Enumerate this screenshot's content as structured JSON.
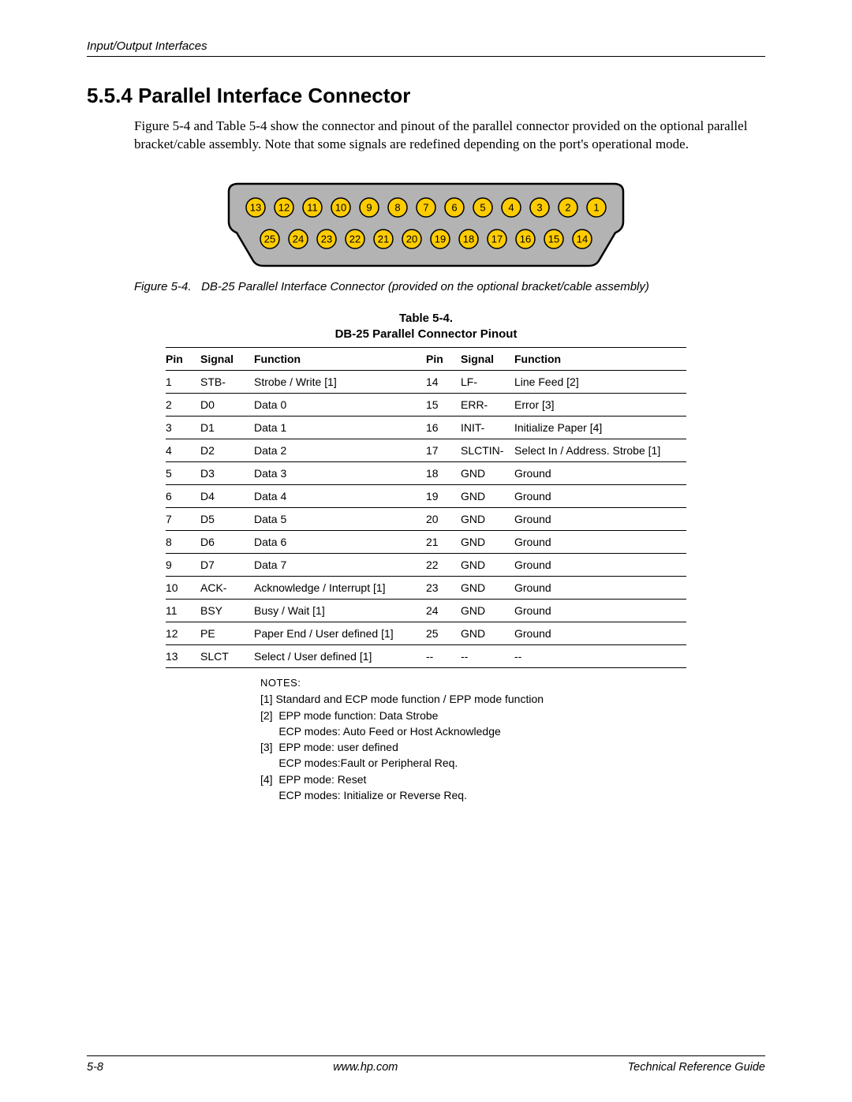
{
  "header": {
    "running": "Input/Output Interfaces"
  },
  "section": {
    "number": "5.5.4",
    "title": "Parallel Interface Connector",
    "intro": "Figure 5-4 and Table 5-4 show the connector and pinout of the parallel connector provided on the optional parallel bracket/cable assembly. Note that some signals are redefined depending on the port's operational mode."
  },
  "figure": {
    "caption_prefix": "Figure 5-4.",
    "caption_text": "DB-25 Parallel Interface Connector (provided on the optional bracket/cable assembly)",
    "connector": {
      "shell_fill": "#b3b3b3",
      "pin_fill": "#ffcc00",
      "stroke": "#000000",
      "top_row_pins": [
        13,
        12,
        11,
        10,
        9,
        8,
        7,
        6,
        5,
        4,
        3,
        2,
        1
      ],
      "bottom_row_pins": [
        25,
        24,
        23,
        22,
        21,
        20,
        19,
        18,
        17,
        16,
        15,
        14
      ]
    }
  },
  "table": {
    "title_line1": "Table 5-4.",
    "title_line2": "DB-25 Parallel Connector Pinout",
    "headers": [
      "Pin",
      "Signal",
      "Function",
      "Pin",
      "Signal",
      "Function"
    ],
    "rows": [
      [
        "1",
        "STB-",
        "Strobe / Write [1]",
        "14",
        "LF-",
        "Line Feed  [2]"
      ],
      [
        "2",
        "D0",
        "Data 0",
        "15",
        "ERR-",
        "Error [3]"
      ],
      [
        "3",
        "D1",
        "Data 1",
        "16",
        "INIT-",
        "Initialize Paper [4]"
      ],
      [
        "4",
        "D2",
        "Data 2",
        "17",
        "SLCTIN-",
        "Select In / Address. Strobe [1]"
      ],
      [
        "5",
        "D3",
        "Data 3",
        "18",
        "GND",
        "Ground"
      ],
      [
        "6",
        "D4",
        "Data 4",
        "19",
        "GND",
        "Ground"
      ],
      [
        "7",
        "D5",
        "Data 5",
        "20",
        "GND",
        "Ground"
      ],
      [
        "8",
        "D6",
        "Data 6",
        "21",
        "GND",
        "Ground"
      ],
      [
        "9",
        "D7",
        "Data 7",
        "22",
        "GND",
        "Ground"
      ],
      [
        "10",
        "ACK-",
        "Acknowledge / Interrupt [1]",
        "23",
        "GND",
        "Ground"
      ],
      [
        "11",
        "BSY",
        "Busy / Wait [1]",
        "24",
        "GND",
        "Ground"
      ],
      [
        "12",
        "PE",
        "Paper End / User defined [1]",
        "25",
        "GND",
        "Ground"
      ],
      [
        "13",
        "SLCT",
        "Select / User defined [1]",
        "--",
        "--",
        "--"
      ]
    ]
  },
  "notes": {
    "title": "NOTES:",
    "lines": [
      "[1] Standard and ECP mode function / EPP mode function",
      "[2]  EPP mode function: Data Strobe",
      "      ECP modes: Auto Feed or Host Acknowledge",
      "[3]  EPP mode: user defined",
      "      ECP modes:Fault or Peripheral Req.",
      "[4]  EPP mode: Reset",
      "      ECP modes: Initialize or Reverse Req."
    ]
  },
  "footer": {
    "left": "5-8",
    "center": "www.hp.com",
    "right": "Technical Reference Guide"
  }
}
